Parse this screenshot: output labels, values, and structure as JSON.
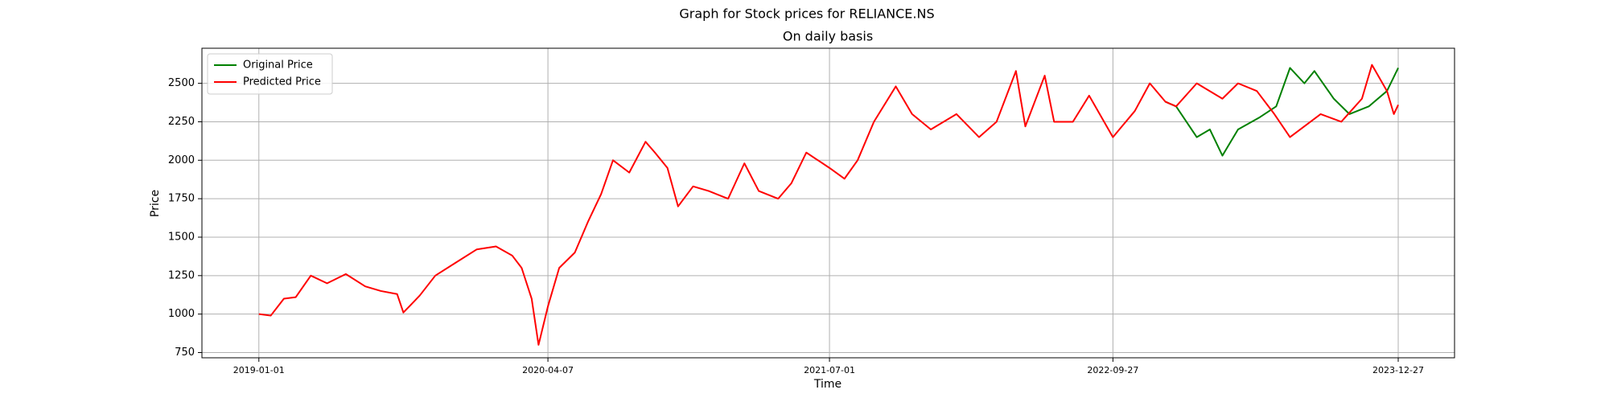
{
  "chart_data": {
    "type": "line",
    "title": "Graph for Stock prices for RELIANCE.NS",
    "subtitle": "On daily basis",
    "x_label": "Time",
    "y_label": "Price",
    "xlim": [
      "2018-10-02",
      "2024-03-26"
    ],
    "xticks": [
      "2019-01-01",
      "2020-04-07",
      "2021-07-01",
      "2022-09-27",
      "2023-12-27"
    ],
    "ylim": [
      716,
      2728
    ],
    "yticks": [
      750,
      1000,
      1250,
      1500,
      1750,
      2000,
      2250,
      2500
    ],
    "grid": true,
    "legend": "upper left",
    "series": [
      {
        "name": "Original Price",
        "color": "#008000",
        "x": [
          "2022-12-20",
          "2023-01-06",
          "2023-02-08",
          "2023-03-01",
          "2023-03-21",
          "2023-04-15",
          "2023-05-20",
          "2023-06-15",
          "2023-07-07",
          "2023-07-30",
          "2023-08-15",
          "2023-09-15",
          "2023-10-10",
          "2023-11-10",
          "2023-12-09",
          "2023-12-27"
        ],
        "values": [
          2380,
          2350,
          2150,
          2200,
          2030,
          2200,
          2280,
          2350,
          2600,
          2500,
          2580,
          2400,
          2300,
          2350,
          2450,
          2600
        ]
      },
      {
        "name": "Predicted Price",
        "color": "#ff0000",
        "x": [
          "2019-01-01",
          "2019-01-20",
          "2019-02-10",
          "2019-03-01",
          "2019-03-25",
          "2019-04-20",
          "2019-05-20",
          "2019-06-20",
          "2019-07-15",
          "2019-08-10",
          "2019-08-20",
          "2019-09-15",
          "2019-10-10",
          "2019-11-10",
          "2019-12-15",
          "2020-01-15",
          "2020-02-10",
          "2020-02-25",
          "2020-03-12",
          "2020-03-23",
          "2020-04-07",
          "2020-04-25",
          "2020-05-20",
          "2020-06-10",
          "2020-07-01",
          "2020-07-20",
          "2020-08-15",
          "2020-09-10",
          "2020-09-25",
          "2020-10-15",
          "2020-11-01",
          "2020-11-25",
          "2020-12-20",
          "2021-01-20",
          "2021-02-15",
          "2021-03-10",
          "2021-04-10",
          "2021-05-01",
          "2021-05-25",
          "2021-07-01",
          "2021-07-25",
          "2021-08-15",
          "2021-09-10",
          "2021-10-15",
          "2021-11-10",
          "2021-12-10",
          "2022-01-20",
          "2022-02-25",
          "2022-03-25",
          "2022-04-25",
          "2022-05-10",
          "2022-06-10",
          "2022-06-25",
          "2022-07-25",
          "2022-08-20",
          "2022-09-27",
          "2022-11-01",
          "2022-11-25",
          "2022-12-20",
          "2023-01-06",
          "2023-02-08",
          "2023-03-21",
          "2023-04-15",
          "2023-05-15",
          "2023-06-12",
          "2023-07-07",
          "2023-08-25",
          "2023-09-27",
          "2023-10-30",
          "2023-11-15",
          "2023-12-09",
          "2023-12-20",
          "2023-12-27"
        ],
        "values": [
          1000,
          990,
          1100,
          1110,
          1250,
          1200,
          1260,
          1180,
          1150,
          1130,
          1010,
          1120,
          1250,
          1330,
          1420,
          1440,
          1380,
          1300,
          1100,
          800,
          1050,
          1300,
          1400,
          1600,
          1780,
          2000,
          1920,
          2120,
          2050,
          1950,
          1700,
          1830,
          1800,
          1750,
          1980,
          1800,
          1750,
          1850,
          2050,
          1950,
          1880,
          2000,
          2250,
          2480,
          2300,
          2200,
          2300,
          2150,
          2250,
          2580,
          2220,
          2550,
          2250,
          2250,
          2420,
          2150,
          2320,
          2500,
          2380,
          2350,
          2500,
          2400,
          2500,
          2450,
          2300,
          2150,
          2300,
          2250,
          2400,
          2620,
          2450,
          2300,
          2360
        ]
      }
    ]
  }
}
